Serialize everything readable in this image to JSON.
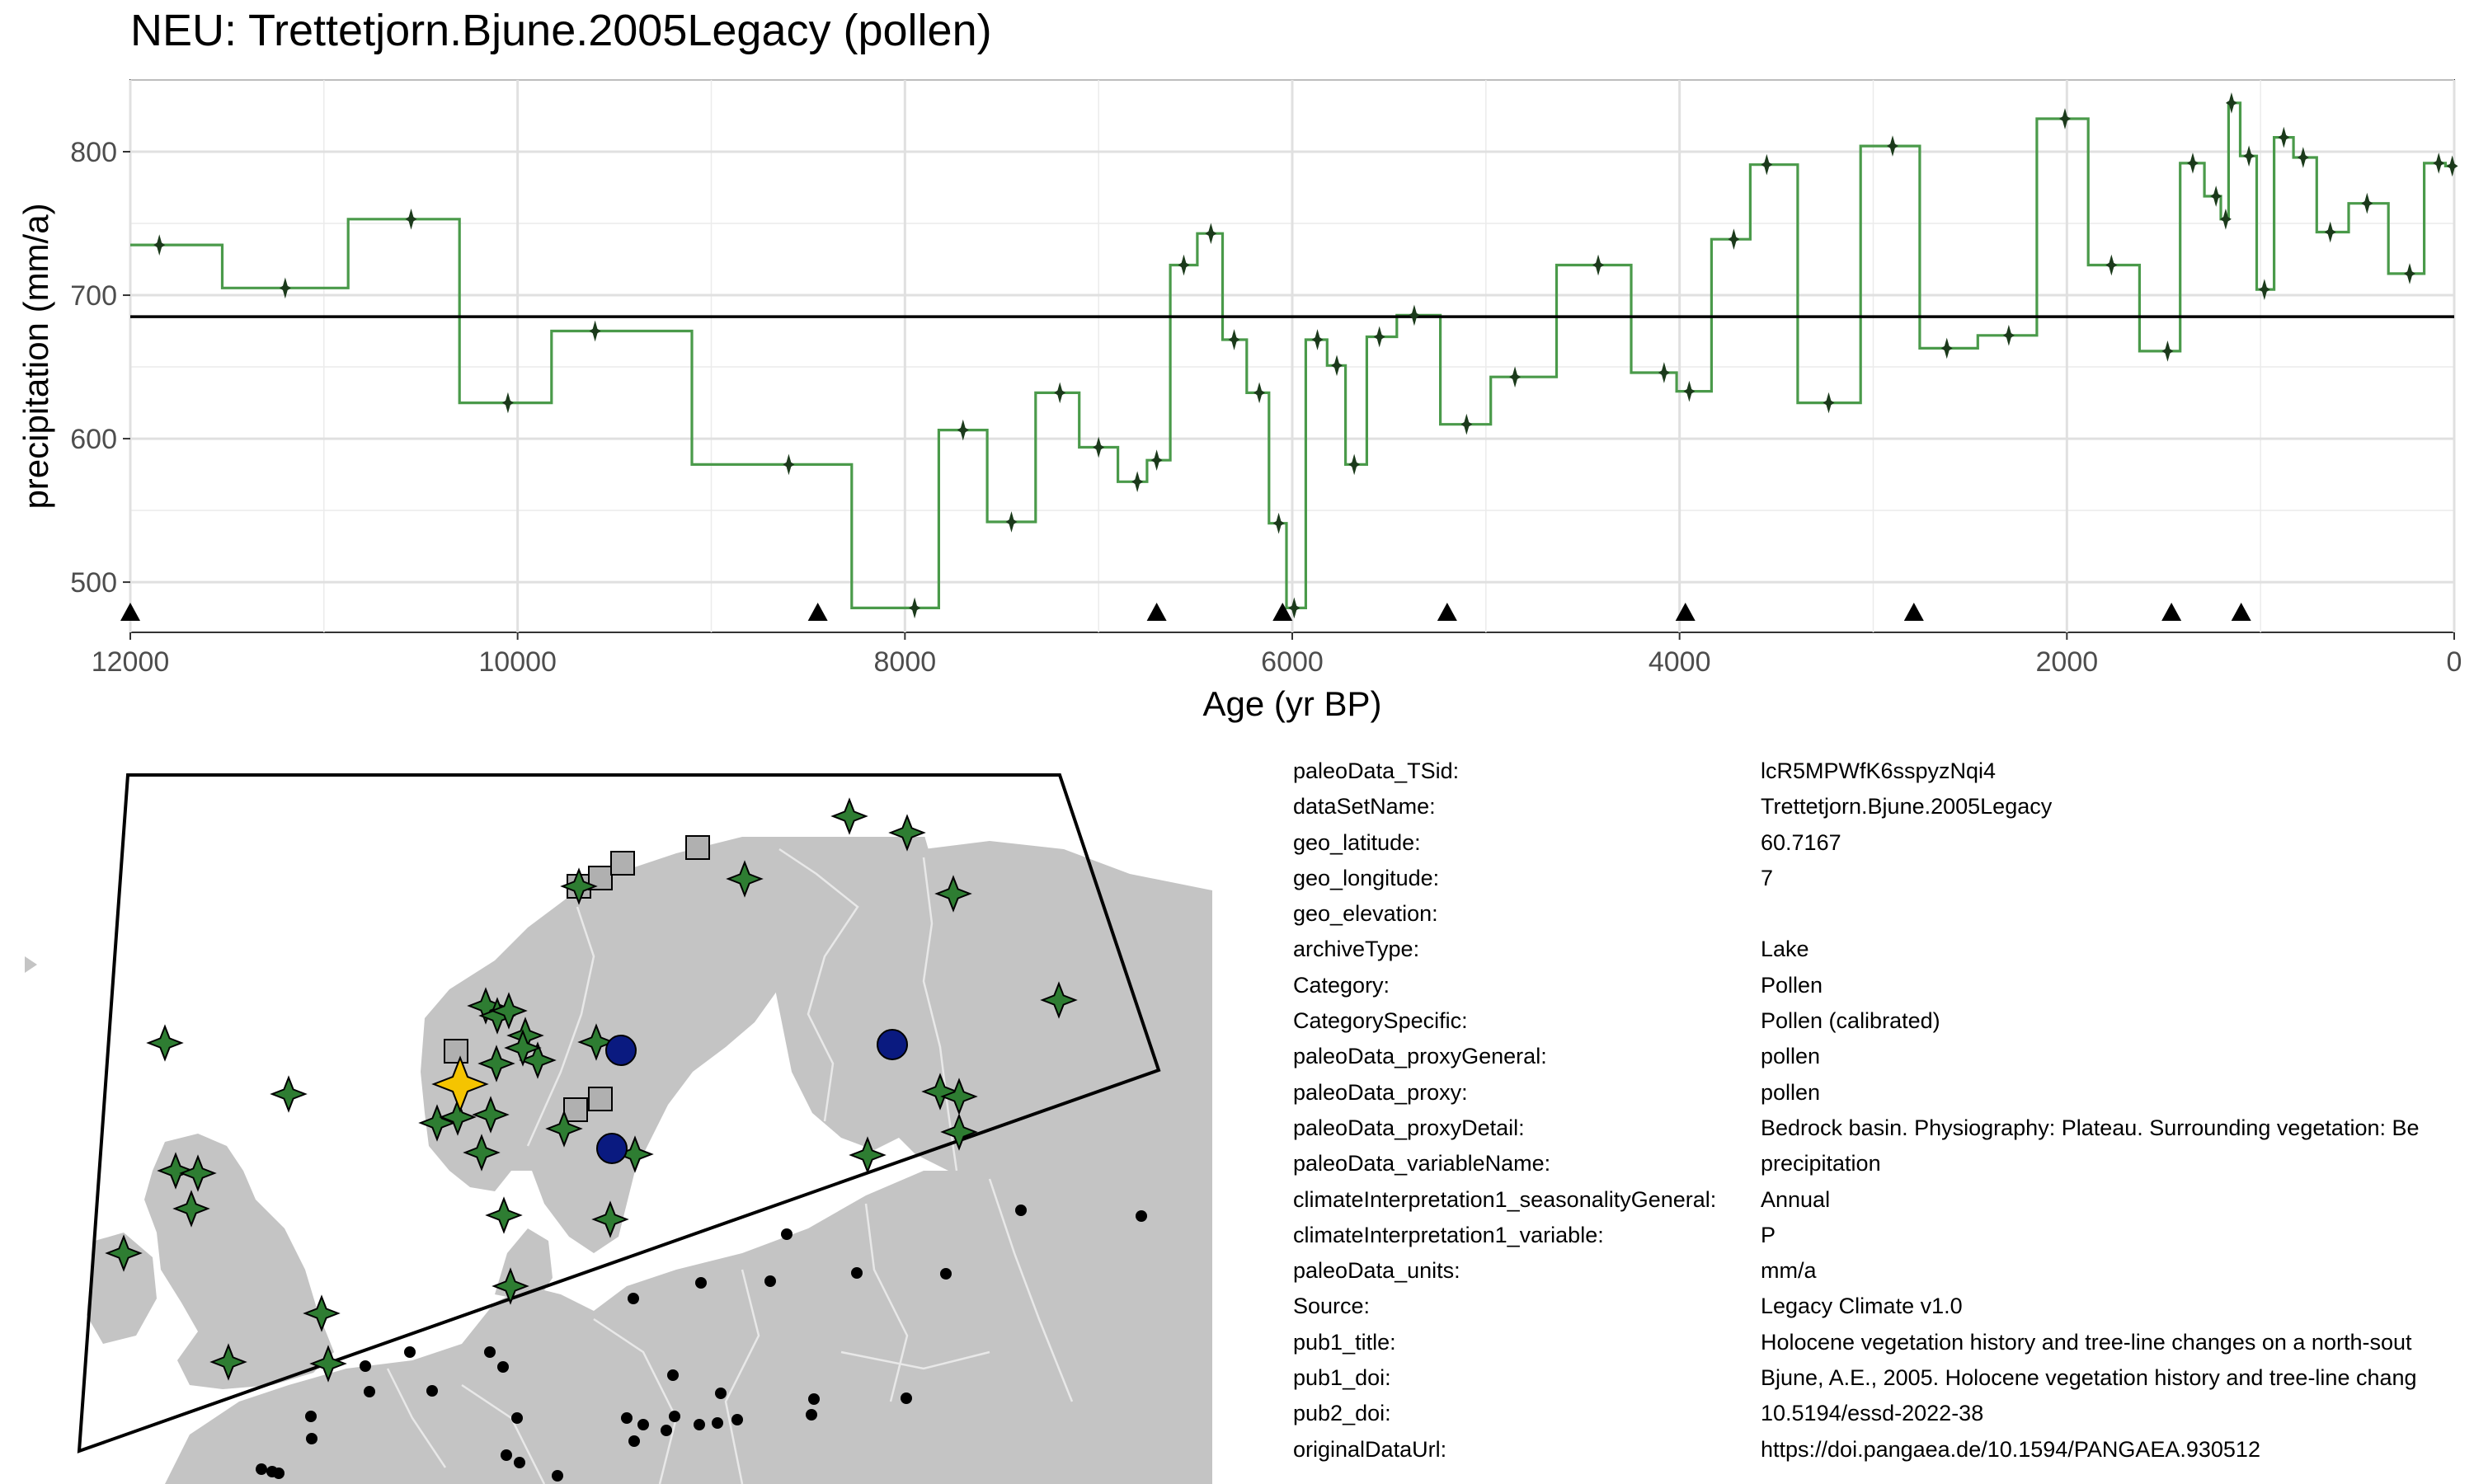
{
  "chart_data": {
    "type": "line",
    "title": "NEU: Trettetjorn.Bjune.2005Legacy (pollen)",
    "xlabel": "Age (yr BP)",
    "ylabel": "precipitation (mm/a)",
    "xlim": [
      12000,
      0
    ],
    "ylim": [
      465,
      850
    ],
    "x_ticks": [
      "12000",
      "10000",
      "8000",
      "6000",
      "4000",
      "2000",
      "0"
    ],
    "y_ticks": [
      "500",
      "600",
      "700",
      "800"
    ],
    "x_reversed": true,
    "grid": true,
    "reference_line": 685,
    "series": [
      {
        "line_color": "#4a9a4a",
        "x": [
          11850,
          11200,
          10550,
          10050,
          9600,
          8600,
          7950,
          7700,
          7450,
          7200,
          7000,
          6800,
          6700,
          6560,
          6420,
          6300,
          6170,
          6070,
          5990,
          5870,
          5770,
          5680,
          5550,
          5370,
          5100,
          4850,
          4420,
          4080,
          3950,
          3720,
          3550,
          2900,
          3230,
          2620,
          2300,
          2010,
          1770,
          1480,
          1350,
          1230,
          1180,
          1150,
          1060,
          980,
          880,
          780,
          640,
          450,
          230,
          80,
          10
        ],
        "y": [
          735,
          705,
          753,
          625,
          675,
          582,
          482,
          606,
          542,
          632,
          594,
          570,
          585,
          721,
          743,
          669,
          632,
          541,
          482,
          669,
          651,
          582,
          671,
          686,
          610,
          643,
          721,
          646,
          633,
          739,
          791,
          804,
          625,
          663,
          672,
          823,
          721,
          661,
          792,
          769,
          753,
          834,
          797,
          704,
          810,
          796,
          744,
          764,
          715,
          792,
          790
        ]
      }
    ],
    "triangle_markers_x": [
      12000,
      8450,
      6700,
      6050,
      5200,
      3970,
      2790,
      1460,
      1100
    ]
  },
  "map": {
    "land_color": "#c4c4c4",
    "border_color": "#e8e8e8",
    "site_color": "#2e7d32",
    "highlight_color": "#f5c400",
    "circle_color": "#0a1a80",
    "square_color": "#b0b0b0"
  },
  "metadata": [
    {
      "key": "paleoData_TSid:",
      "value": "lcR5MPWfK6sspyzNqi4"
    },
    {
      "key": "dataSetName:",
      "value": "Trettetjorn.Bjune.2005Legacy"
    },
    {
      "key": "geo_latitude:",
      "value": "60.7167"
    },
    {
      "key": "geo_longitude:",
      "value": "7"
    },
    {
      "key": "geo_elevation:",
      "value": ""
    },
    {
      "key": "archiveType:",
      "value": "Lake"
    },
    {
      "key": "Category:",
      "value": "Pollen"
    },
    {
      "key": "CategorySpecific:",
      "value": "Pollen (calibrated)"
    },
    {
      "key": "paleoData_proxyGeneral:",
      "value": "pollen"
    },
    {
      "key": "paleoData_proxy:",
      "value": "pollen"
    },
    {
      "key": "paleoData_proxyDetail:",
      "value": "Bedrock basin. Physiography: Plateau. Surrounding vegetation: Be"
    },
    {
      "key": "paleoData_variableName:",
      "value": "precipitation"
    },
    {
      "key": "climateInterpretation1_seasonalityGeneral:",
      "value": "Annual"
    },
    {
      "key": "climateInterpretation1_variable:",
      "value": "P"
    },
    {
      "key": "paleoData_units:",
      "value": "mm/a"
    },
    {
      "key": "Source:",
      "value": "Legacy Climate v1.0"
    },
    {
      "key": "pub1_title:",
      "value": "Holocene vegetation history and tree-line changes on a north-sout"
    },
    {
      "key": "pub1_doi:",
      "value": "Bjune, A.E., 2005. Holocene vegetation history and tree-line chang"
    },
    {
      "key": "pub2_doi:",
      "value": "10.5194/essd-2022-38"
    },
    {
      "key": "originalDataUrl:",
      "value": "https://doi.pangaea.de/10.1594/PANGAEA.930512"
    }
  ]
}
